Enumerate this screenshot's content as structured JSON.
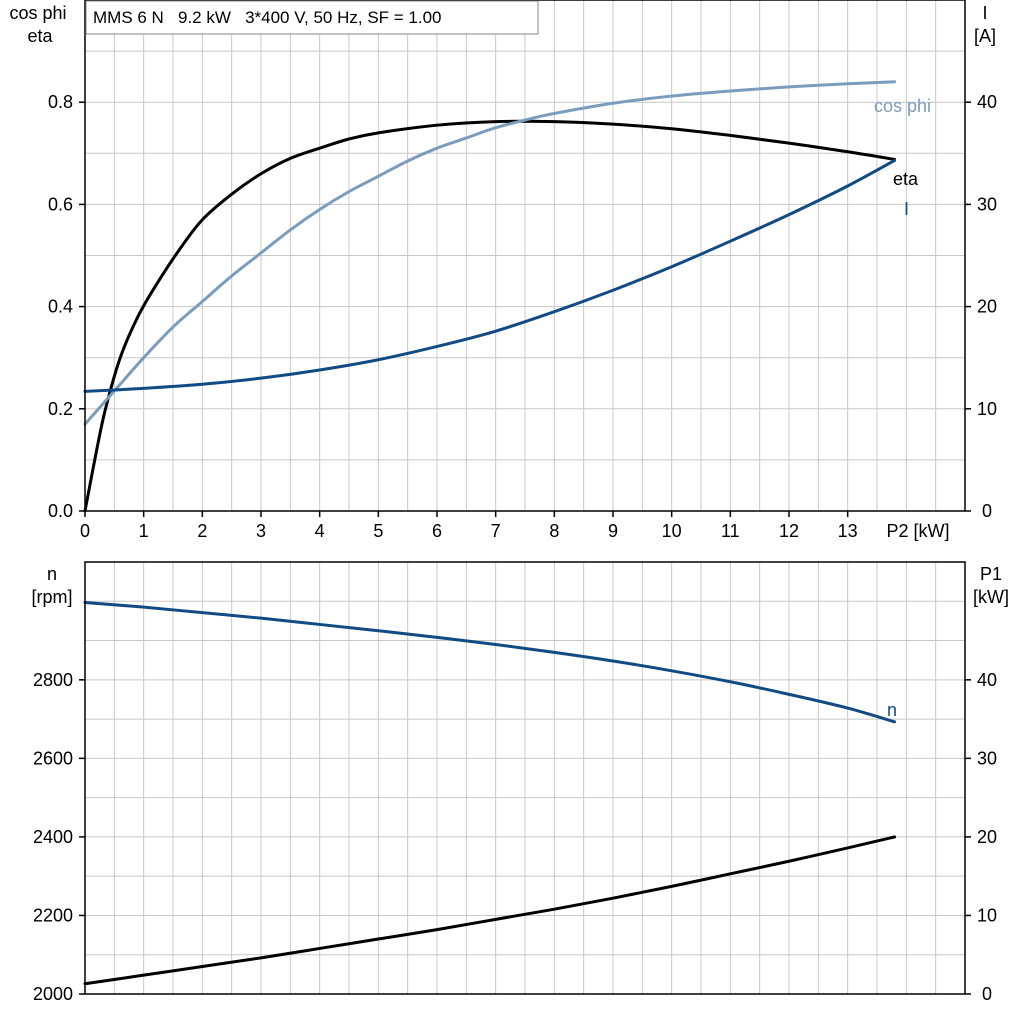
{
  "header": {
    "title": "MMS 6 N   9.2 kW   3*400 V, 50 Hz, SF = 1.00"
  },
  "colors": {
    "eta": "#000000",
    "cos_phi": "#7b9dbd",
    "current": "#114b84",
    "speed": "#114b84",
    "p1": "#000000",
    "grid": "#c8c8c8"
  },
  "chart_data": [
    {
      "type": "line",
      "title": "MMS 6 N   9.2 kW   3*400 V, 50 Hz, SF = 1.00",
      "xlabel": "P2 [kW]",
      "ylabel_left": [
        "cos phi",
        "eta"
      ],
      "ylabel_right": [
        "I",
        "[A]"
      ],
      "xlim": [
        0,
        15
      ],
      "ylim_left": [
        0,
        1.0
      ],
      "ylim_right": [
        0,
        50
      ],
      "x_ticks": [
        "0",
        "1",
        "2",
        "3",
        "4",
        "5",
        "6",
        "7",
        "8",
        "9",
        "10",
        "11",
        "12",
        "13"
      ],
      "x_tick_unit_label": "P2 [kW]",
      "y_ticks_left": [
        "0.0",
        "0.2",
        "0.4",
        "0.6",
        "0.8"
      ],
      "y_ticks_right": [
        "0",
        "10",
        "20",
        "30",
        "40"
      ],
      "grid": true,
      "series": [
        {
          "name": "eta",
          "axis": "left",
          "color": "#000000",
          "x": [
            0,
            0.2,
            0.35,
            0.6,
            0.9,
            1.2,
            1.6,
            2.0,
            2.5,
            3.0,
            3.5,
            4.0,
            4.5,
            5.0,
            6.0,
            7.0,
            8.0,
            9.0,
            10.0,
            11.0,
            12.0,
            13.0,
            13.8
          ],
          "values": [
            0.0,
            0.12,
            0.2,
            0.3,
            0.38,
            0.44,
            0.51,
            0.57,
            0.62,
            0.66,
            0.69,
            0.71,
            0.728,
            0.74,
            0.755,
            0.762,
            0.762,
            0.757,
            0.748,
            0.735,
            0.72,
            0.703,
            0.688
          ]
        },
        {
          "name": "cos phi",
          "axis": "left",
          "color": "#7b9dbd",
          "x": [
            0,
            0.5,
            1.0,
            1.5,
            2.0,
            2.5,
            3.0,
            3.5,
            4.0,
            4.5,
            5.0,
            5.5,
            6.0,
            6.5,
            7.0,
            7.5,
            8.0,
            9.0,
            10.0,
            11.0,
            12.0,
            13.0,
            13.8
          ],
          "values": [
            0.17,
            0.235,
            0.3,
            0.36,
            0.41,
            0.46,
            0.505,
            0.55,
            0.59,
            0.625,
            0.655,
            0.685,
            0.71,
            0.73,
            0.75,
            0.765,
            0.778,
            0.798,
            0.812,
            0.822,
            0.83,
            0.836,
            0.84
          ]
        },
        {
          "name": "I",
          "axis": "right",
          "color": "#114b84",
          "x": [
            0,
            1,
            2,
            3,
            4,
            5,
            6,
            7,
            8,
            9,
            10,
            11,
            12,
            13,
            13.8
          ],
          "values": [
            11.7,
            12.0,
            12.4,
            13.0,
            13.8,
            14.8,
            16.1,
            17.6,
            19.5,
            21.6,
            23.9,
            26.4,
            29.0,
            31.8,
            34.3
          ]
        }
      ],
      "annotations": [
        "cos phi",
        "eta",
        "I"
      ]
    },
    {
      "type": "line",
      "xlabel": "",
      "ylabel_left": [
        "n",
        "[rpm]"
      ],
      "ylabel_right": [
        "P1",
        "[kW]"
      ],
      "xlim": [
        0,
        15
      ],
      "ylim_left": [
        2000,
        3100
      ],
      "ylim_right": [
        0,
        55
      ],
      "y_ticks_left": [
        "2000",
        "2200",
        "2400",
        "2600",
        "2800"
      ],
      "y_ticks_right": [
        "0",
        "10",
        "20",
        "30",
        "40"
      ],
      "grid": true,
      "series": [
        {
          "name": "n",
          "axis": "left",
          "color": "#114b84",
          "x": [
            0,
            1,
            2,
            3,
            4,
            5,
            6,
            7,
            8,
            9,
            10,
            11,
            12,
            13,
            13.8
          ],
          "values": [
            2997,
            2985,
            2971,
            2957,
            2941,
            2925,
            2908,
            2890,
            2870,
            2848,
            2823,
            2795,
            2763,
            2728,
            2693
          ]
        },
        {
          "name": "P1",
          "axis": "right",
          "color": "#000000",
          "x": [
            0,
            1,
            2,
            3,
            4,
            5,
            6,
            7,
            8,
            9,
            10,
            11,
            12,
            13,
            13.8
          ],
          "values": [
            1.3,
            2.4,
            3.5,
            4.6,
            5.8,
            7.0,
            8.2,
            9.5,
            10.8,
            12.2,
            13.7,
            15.3,
            16.9,
            18.6,
            20.0
          ]
        }
      ],
      "annotations": [
        "n"
      ]
    }
  ]
}
